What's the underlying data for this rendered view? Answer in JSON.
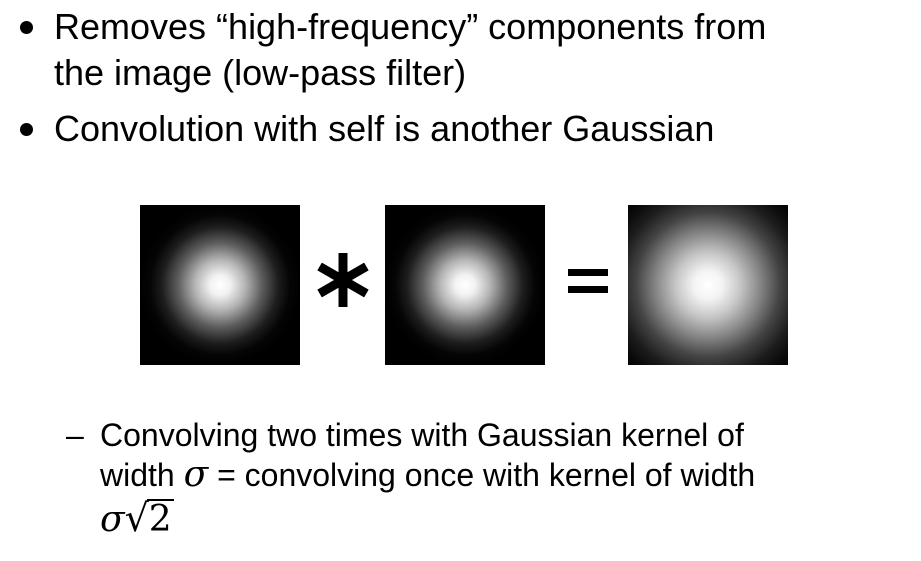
{
  "slide": {
    "bullets": [
      {
        "line1": "Removes “high-frequency” components from",
        "line2": "the image (low-pass filter)"
      },
      {
        "line1": "Convolution with self is another Gaussian"
      }
    ],
    "figure": {
      "operator_convolve": "*",
      "operator_equals": "=",
      "images": [
        {
          "name": "gaussian-kernel",
          "label": ""
        },
        {
          "name": "gaussian-kernel",
          "label": ""
        },
        {
          "name": "wider-gaussian-kernel",
          "label": ""
        }
      ]
    },
    "sub_bullet": {
      "dash": "–",
      "line1": "Convolving two times with Gaussian kernel of",
      "line2_before": "width ",
      "sigma": "σ",
      "line2_after": " = convolving once with kernel of width",
      "result_sigma": "σ",
      "result_radicand": "2",
      "radical_symbol": "√"
    }
  }
}
